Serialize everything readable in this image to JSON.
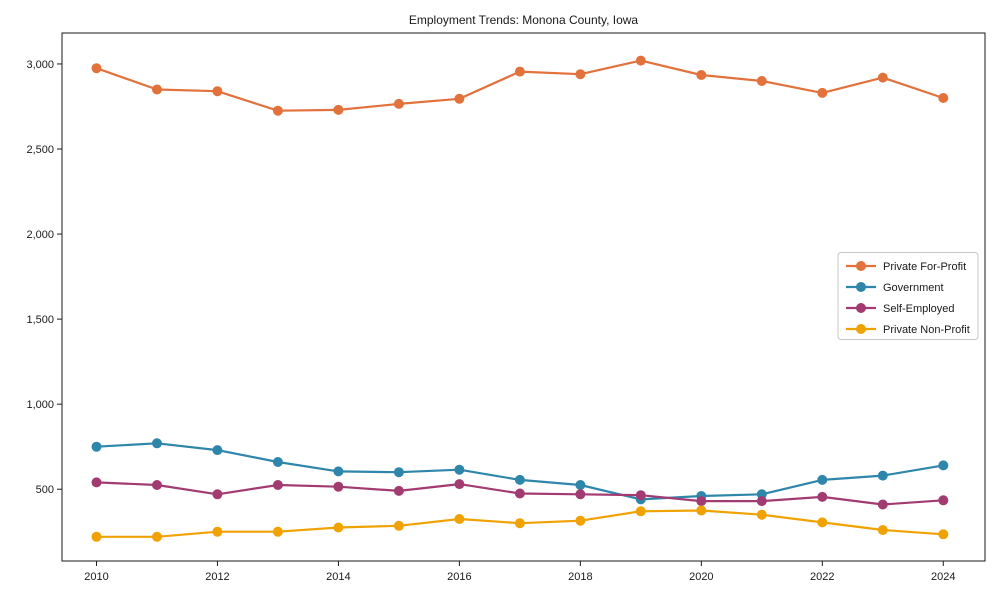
{
  "figure": {
    "background": "#ffffff"
  },
  "chart_data": {
    "type": "line",
    "title": "Employment Trends: Monona County, Iowa",
    "xlabel": "",
    "ylabel": "",
    "grid": false,
    "legend_position": "center-right",
    "x": [
      2010,
      2011,
      2012,
      2013,
      2014,
      2015,
      2016,
      2017,
      2018,
      2019,
      2020,
      2021,
      2022,
      2023,
      2024
    ],
    "x_tick_labels": [
      "2010",
      "2012",
      "2014",
      "2016",
      "2018",
      "2020",
      "2022",
      "2024"
    ],
    "y_tick_values": [
      500,
      1000,
      1500,
      2000,
      2500,
      3000
    ],
    "y_tick_labels": [
      "500",
      "1,000",
      "1,500",
      "2,000",
      "2,500",
      "3,000"
    ],
    "xlim": [
      2009.43,
      2024.69
    ],
    "ylim": [
      78,
      3182
    ],
    "series": [
      {
        "name": "Private For-Profit",
        "color": "#e2713c",
        "values": [
          2975,
          2850,
          2840,
          2725,
          2730,
          2765,
          2795,
          2955,
          2940,
          3020,
          2935,
          2900,
          2830,
          2920,
          2800
        ]
      },
      {
        "name": "Government",
        "color": "#2e86ab",
        "values": [
          750,
          770,
          730,
          660,
          605,
          600,
          615,
          555,
          525,
          440,
          460,
          470,
          555,
          580,
          640
        ]
      },
      {
        "name": "Self-Employed",
        "color": "#a23b72",
        "values": [
          540,
          525,
          470,
          525,
          515,
          490,
          530,
          475,
          470,
          465,
          430,
          430,
          455,
          410,
          435
        ]
      },
      {
        "name": "Private Non-Profit",
        "color": "#f0a202",
        "values": [
          220,
          220,
          250,
          250,
          275,
          285,
          325,
          300,
          315,
          370,
          375,
          350,
          305,
          260,
          235
        ]
      }
    ],
    "style": {
      "axis_color": "#1a1a1a",
      "text_color": "#1a1a1a",
      "legend_border_color": "#c8c8c8",
      "line_width": 2.2,
      "marker_radius": 5
    }
  }
}
